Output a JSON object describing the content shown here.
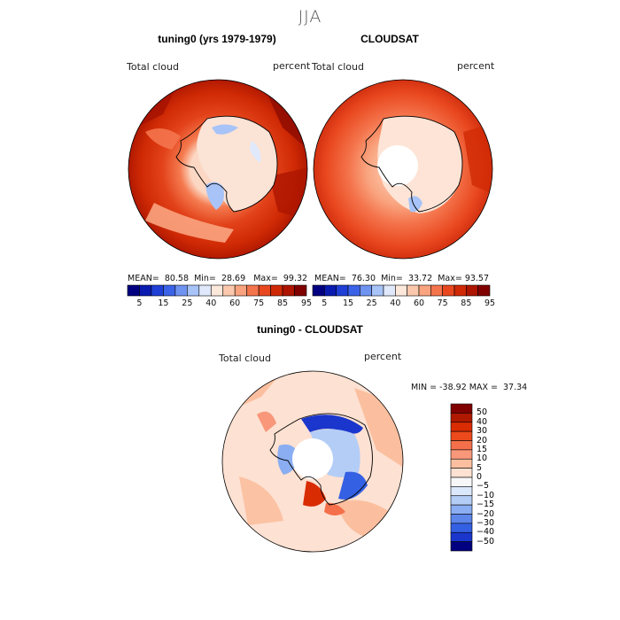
{
  "page": {
    "title": "JJA"
  },
  "panels": [
    {
      "title": "tuning0 (yrs 1979-1979)",
      "left_label": "Total cloud",
      "right_label": "percent",
      "stats": {
        "mean_label": "MEAN=",
        "mean": "80.58",
        "min_label": "Min=",
        "min": "28.69",
        "max_label": "Max=",
        "max": "99.32"
      }
    },
    {
      "title": "CLOUDSAT",
      "left_label": "Total cloud",
      "right_label": "percent",
      "stats": {
        "mean_label": "MEAN=",
        "mean": "76.30",
        "min_label": "Min=",
        "min": "33.72",
        "max_label": "Max=",
        "max": "93.57"
      }
    }
  ],
  "abs_colorbar": {
    "colors": [
      "#000080",
      "#0a1bb0",
      "#1f3fd6",
      "#3b63e8",
      "#6f93f0",
      "#a7c3f7",
      "#dfe9fb",
      "#fde9dc",
      "#fbc8ad",
      "#f9a47f",
      "#f4744c",
      "#e9481f",
      "#cf2a05",
      "#ad1500",
      "#800000"
    ],
    "tick_labels": [
      "5",
      "15",
      "25",
      "40",
      "60",
      "75",
      "85",
      "95"
    ]
  },
  "diff_panel": {
    "title": "tuning0 - CLOUDSAT",
    "left_label": "Total cloud",
    "right_label": "percent",
    "minmax": {
      "min_label": "MIN =",
      "min": "-38.92",
      "max_label": "MAX =",
      "max": "37.34"
    }
  },
  "diff_colorbar": {
    "colors": [
      "#800000",
      "#b01900",
      "#d92c03",
      "#ec4a1c",
      "#f4704a",
      "#f8977a",
      "#fbbf9f",
      "#fde1d2",
      "#f7f7f7",
      "#dbe7fa",
      "#b4cdf6",
      "#8aaef1",
      "#5d86ea",
      "#3460e3",
      "#1a36cc",
      "#000080"
    ],
    "tick_labels": [
      "50",
      "40",
      "30",
      "20",
      "15",
      "10",
      "5",
      "0",
      "−5",
      "−10",
      "−15",
      "−20",
      "−30",
      "−40",
      "−50"
    ]
  }
}
